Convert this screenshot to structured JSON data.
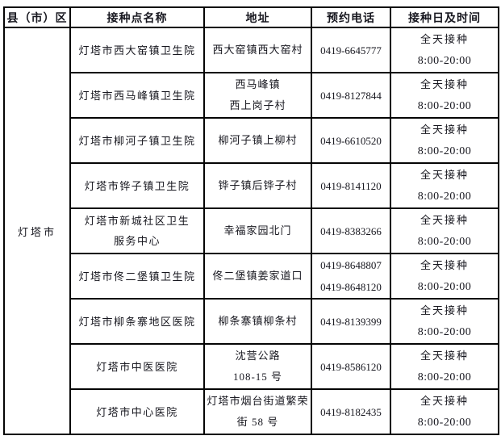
{
  "table": {
    "headers": [
      "县（市）区",
      "接种点名称",
      "地址",
      "预约电话",
      "接种日及时间"
    ],
    "district": "灯塔市",
    "rows": [
      {
        "name": "灯塔市西大窑镇卫生院",
        "address": "西大窑镇西大窑村",
        "phone": "0419-6645777",
        "time_label": "全天接种",
        "time_hours": "8:00-20:00"
      },
      {
        "name": "灯塔市西马峰镇卫生院",
        "address": "西马峰镇\n西上岗子村",
        "phone": "0419-8127844",
        "time_label": "全天接种",
        "time_hours": "8:00-20:00"
      },
      {
        "name": "灯塔市柳河子镇卫生院",
        "address": "柳河子镇上柳村",
        "phone": "0419-6610520",
        "time_label": "全天接种",
        "time_hours": "8:00-20:00"
      },
      {
        "name": "灯塔市铧子镇卫生院",
        "address": "铧子镇后铧子村",
        "phone": "0419-8141120",
        "time_label": "全天接种",
        "time_hours": "8:00-20:00"
      },
      {
        "name": "灯塔市新城社区卫生\n服务中心",
        "address": "幸福家园北门",
        "phone": "0419-8383266",
        "time_label": "全天接种",
        "time_hours": "8:00-20:00"
      },
      {
        "name": "灯塔市佟二堡镇卫生院",
        "address": "佟二堡镇姜家道口",
        "phone": "0419-8648807\n0419-8648120",
        "time_label": "全天接种",
        "time_hours": "8:00-20:00"
      },
      {
        "name": "灯塔市柳条寨地区医院",
        "address": "柳条寨镇柳条村",
        "phone": "0419-8139399",
        "time_label": "全天接种",
        "time_hours": "8:00-20:00"
      },
      {
        "name": "灯塔市中医医院",
        "address": "沈营公路\n108-15 号",
        "phone": "0419-8586120",
        "time_label": "全天接种",
        "time_hours": "8:00-20:00"
      },
      {
        "name": "灯塔市中心医院",
        "address": "灯塔市烟台街道繁荣\n街 58 号",
        "phone": "0419-8182435",
        "time_label": "全天接种",
        "time_hours": "8:00-20:00"
      }
    ]
  }
}
